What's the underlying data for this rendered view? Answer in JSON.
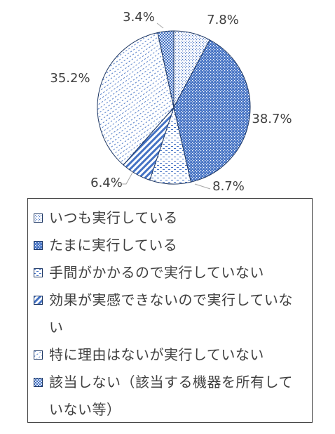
{
  "chart_data": {
    "type": "pie",
    "title": "",
    "categories": [
      "いつも実行している",
      "たまに実行している",
      "手間がかかるので実行していない",
      "効果が実感できないので実行していない",
      "特に理由はないが実行していない",
      "該当しない（該当する機器を所有していない等）"
    ],
    "values": [
      7.8,
      38.7,
      8.7,
      6.4,
      35.2,
      3.4
    ],
    "data_labels": [
      "7.8%",
      "38.7%",
      "8.7%",
      "6.4%",
      "35.2%",
      "3.4%"
    ],
    "fills": [
      "dots-light",
      "dots-blue",
      "dashes",
      "diagonal-blue",
      "diagonal-light",
      "grid-blue"
    ],
    "legend_placement": "bottom",
    "start": "12 o'clock, clockwise"
  },
  "colors": {
    "text": "#404040",
    "outline": "#1f3864",
    "blue": "#4472c4",
    "light_blue": "#dbe5f5"
  }
}
